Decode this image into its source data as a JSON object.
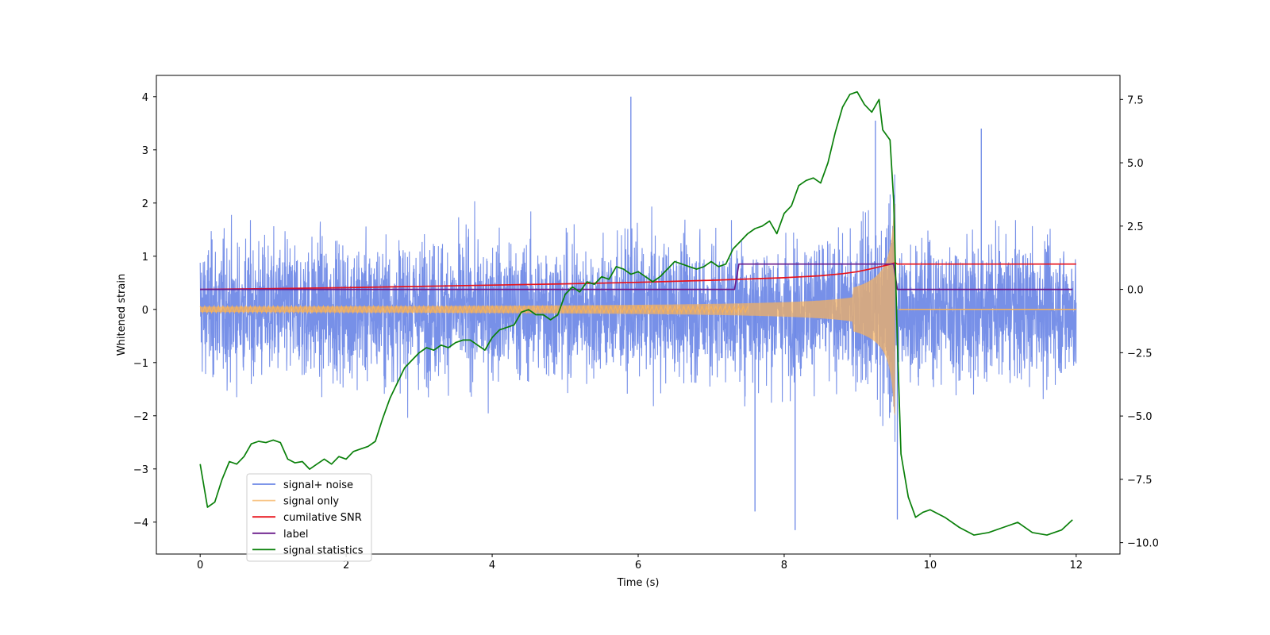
{
  "chart_data": {
    "type": "line",
    "xlabel": "Time (s)",
    "ylabel": "Whitened strain",
    "xlim": [
      -0.6,
      12.6
    ],
    "ylim": [
      -4.6,
      4.4
    ],
    "y2lim": [
      -10.45,
      8.45
    ],
    "grid": false,
    "legend_placement": "lower-left",
    "x_ticks": [
      0,
      2,
      4,
      6,
      8,
      10,
      12
    ],
    "x_tick_labels": [
      "0",
      "2",
      "4",
      "6",
      "8",
      "10",
      "12"
    ],
    "y_ticks": [
      -4,
      -3,
      -2,
      -1,
      0,
      1,
      2,
      3,
      4
    ],
    "y_tick_labels": [
      "−4",
      "−3",
      "−2",
      "−1",
      "0",
      "1",
      "2",
      "3",
      "4"
    ],
    "y2_ticks": [
      -10,
      -7.5,
      -5,
      -2.5,
      0,
      2.5,
      5,
      7.5
    ],
    "y2_tick_labels": [
      "−10.0",
      "−7.5",
      "−5.0",
      "−2.5",
      "0.0",
      "2.5",
      "5.0",
      "7.5"
    ],
    "series": [
      {
        "name": "signal+ noise",
        "color": "#6b87e6",
        "axis": "left",
        "style": "noise",
        "x_range": [
          0,
          12
        ],
        "typical_amplitude": 1.6,
        "notable_peaks": [
          {
            "x": 5.9,
            "y": 4.0
          },
          {
            "x": 9.25,
            "y": 3.55
          },
          {
            "x": 10.7,
            "y": 3.4
          },
          {
            "x": 8.15,
            "y": -4.15
          },
          {
            "x": 9.55,
            "y": -3.95
          },
          {
            "x": 7.6,
            "y": -3.8
          }
        ]
      },
      {
        "name": "signal only",
        "color": "#f5b25e",
        "axis": "left",
        "style": "chirp",
        "merger_time": 9.52,
        "peak_amplitude": 2.0,
        "start_amplitude": 0.05
      },
      {
        "name": "cumilative SNR",
        "color": "#e8121a",
        "axis": "right",
        "x": [
          0,
          1,
          2,
          3,
          4,
          5,
          6,
          7,
          7.5,
          8,
          8.5,
          8.8,
          9.0,
          9.2,
          9.35,
          9.45,
          9.52,
          9.55,
          12
        ],
        "values": [
          0,
          0.03,
          0.07,
          0.12,
          0.17,
          0.22,
          0.28,
          0.36,
          0.41,
          0.46,
          0.54,
          0.62,
          0.7,
          0.82,
          0.92,
          0.99,
          1.05,
          1.0,
          1.0
        ]
      },
      {
        "name": "label",
        "color": "#6a1b8a",
        "axis": "right",
        "x": [
          0,
          7.32,
          7.38,
          9.5,
          9.55,
          11.95
        ],
        "values": [
          0,
          0,
          1,
          1,
          0,
          0
        ]
      },
      {
        "name": "signal statistics",
        "color": "#0a800a",
        "axis": "right",
        "x": [
          0,
          0.1,
          0.2,
          0.3,
          0.4,
          0.5,
          0.6,
          0.7,
          0.8,
          0.9,
          1.0,
          1.1,
          1.2,
          1.3,
          1.4,
          1.5,
          1.6,
          1.7,
          1.8,
          1.9,
          2.0,
          2.1,
          2.2,
          2.3,
          2.4,
          2.5,
          2.6,
          2.7,
          2.8,
          2.9,
          3.0,
          3.1,
          3.2,
          3.3,
          3.4,
          3.5,
          3.6,
          3.7,
          3.8,
          3.9,
          4.0,
          4.1,
          4.2,
          4.3,
          4.4,
          4.5,
          4.6,
          4.7,
          4.8,
          4.9,
          5.0,
          5.1,
          5.2,
          5.3,
          5.4,
          5.5,
          5.6,
          5.7,
          5.8,
          5.9,
          6.0,
          6.1,
          6.2,
          6.3,
          6.4,
          6.5,
          6.6,
          6.7,
          6.8,
          6.9,
          7.0,
          7.1,
          7.2,
          7.3,
          7.4,
          7.5,
          7.6,
          7.7,
          7.8,
          7.9,
          8.0,
          8.1,
          8.2,
          8.3,
          8.4,
          8.5,
          8.6,
          8.7,
          8.8,
          8.9,
          9.0,
          9.1,
          9.2,
          9.3,
          9.35,
          9.4,
          9.45,
          9.5,
          9.55,
          9.6,
          9.7,
          9.8,
          9.9,
          10.0,
          10.2,
          10.4,
          10.6,
          10.8,
          11.0,
          11.2,
          11.4,
          11.6,
          11.8,
          11.95
        ],
        "values": [
          -6.9,
          -8.6,
          -8.4,
          -7.5,
          -6.8,
          -6.9,
          -6.6,
          -6.1,
          -6.0,
          -6.05,
          -5.95,
          -6.05,
          -6.7,
          -6.85,
          -6.8,
          -7.1,
          -6.9,
          -6.7,
          -6.9,
          -6.6,
          -6.7,
          -6.4,
          -6.3,
          -6.2,
          -6.0,
          -5.1,
          -4.3,
          -3.7,
          -3.1,
          -2.8,
          -2.5,
          -2.3,
          -2.4,
          -2.2,
          -2.3,
          -2.1,
          -2.0,
          -2.0,
          -2.2,
          -2.4,
          -1.9,
          -1.6,
          -1.5,
          -1.4,
          -0.9,
          -0.8,
          -1.0,
          -1.0,
          -1.2,
          -1.0,
          -0.2,
          0.1,
          -0.1,
          0.3,
          0.2,
          0.5,
          0.4,
          0.9,
          0.8,
          0.6,
          0.7,
          0.5,
          0.3,
          0.5,
          0.8,
          1.1,
          1.0,
          0.9,
          0.8,
          0.9,
          1.1,
          0.9,
          1.0,
          1.6,
          1.9,
          2.2,
          2.4,
          2.5,
          2.7,
          2.2,
          3.0,
          3.3,
          4.1,
          4.3,
          4.4,
          4.2,
          5.0,
          6.2,
          7.2,
          7.7,
          7.8,
          7.3,
          7.0,
          7.5,
          6.3,
          6.1,
          5.9,
          3.5,
          -2.0,
          -6.5,
          -8.2,
          -9.0,
          -8.8,
          -8.7,
          -9.0,
          -9.4,
          -9.7,
          -9.6,
          -9.4,
          -9.2,
          -9.6,
          -9.7,
          -9.5,
          -9.1
        ]
      }
    ]
  }
}
